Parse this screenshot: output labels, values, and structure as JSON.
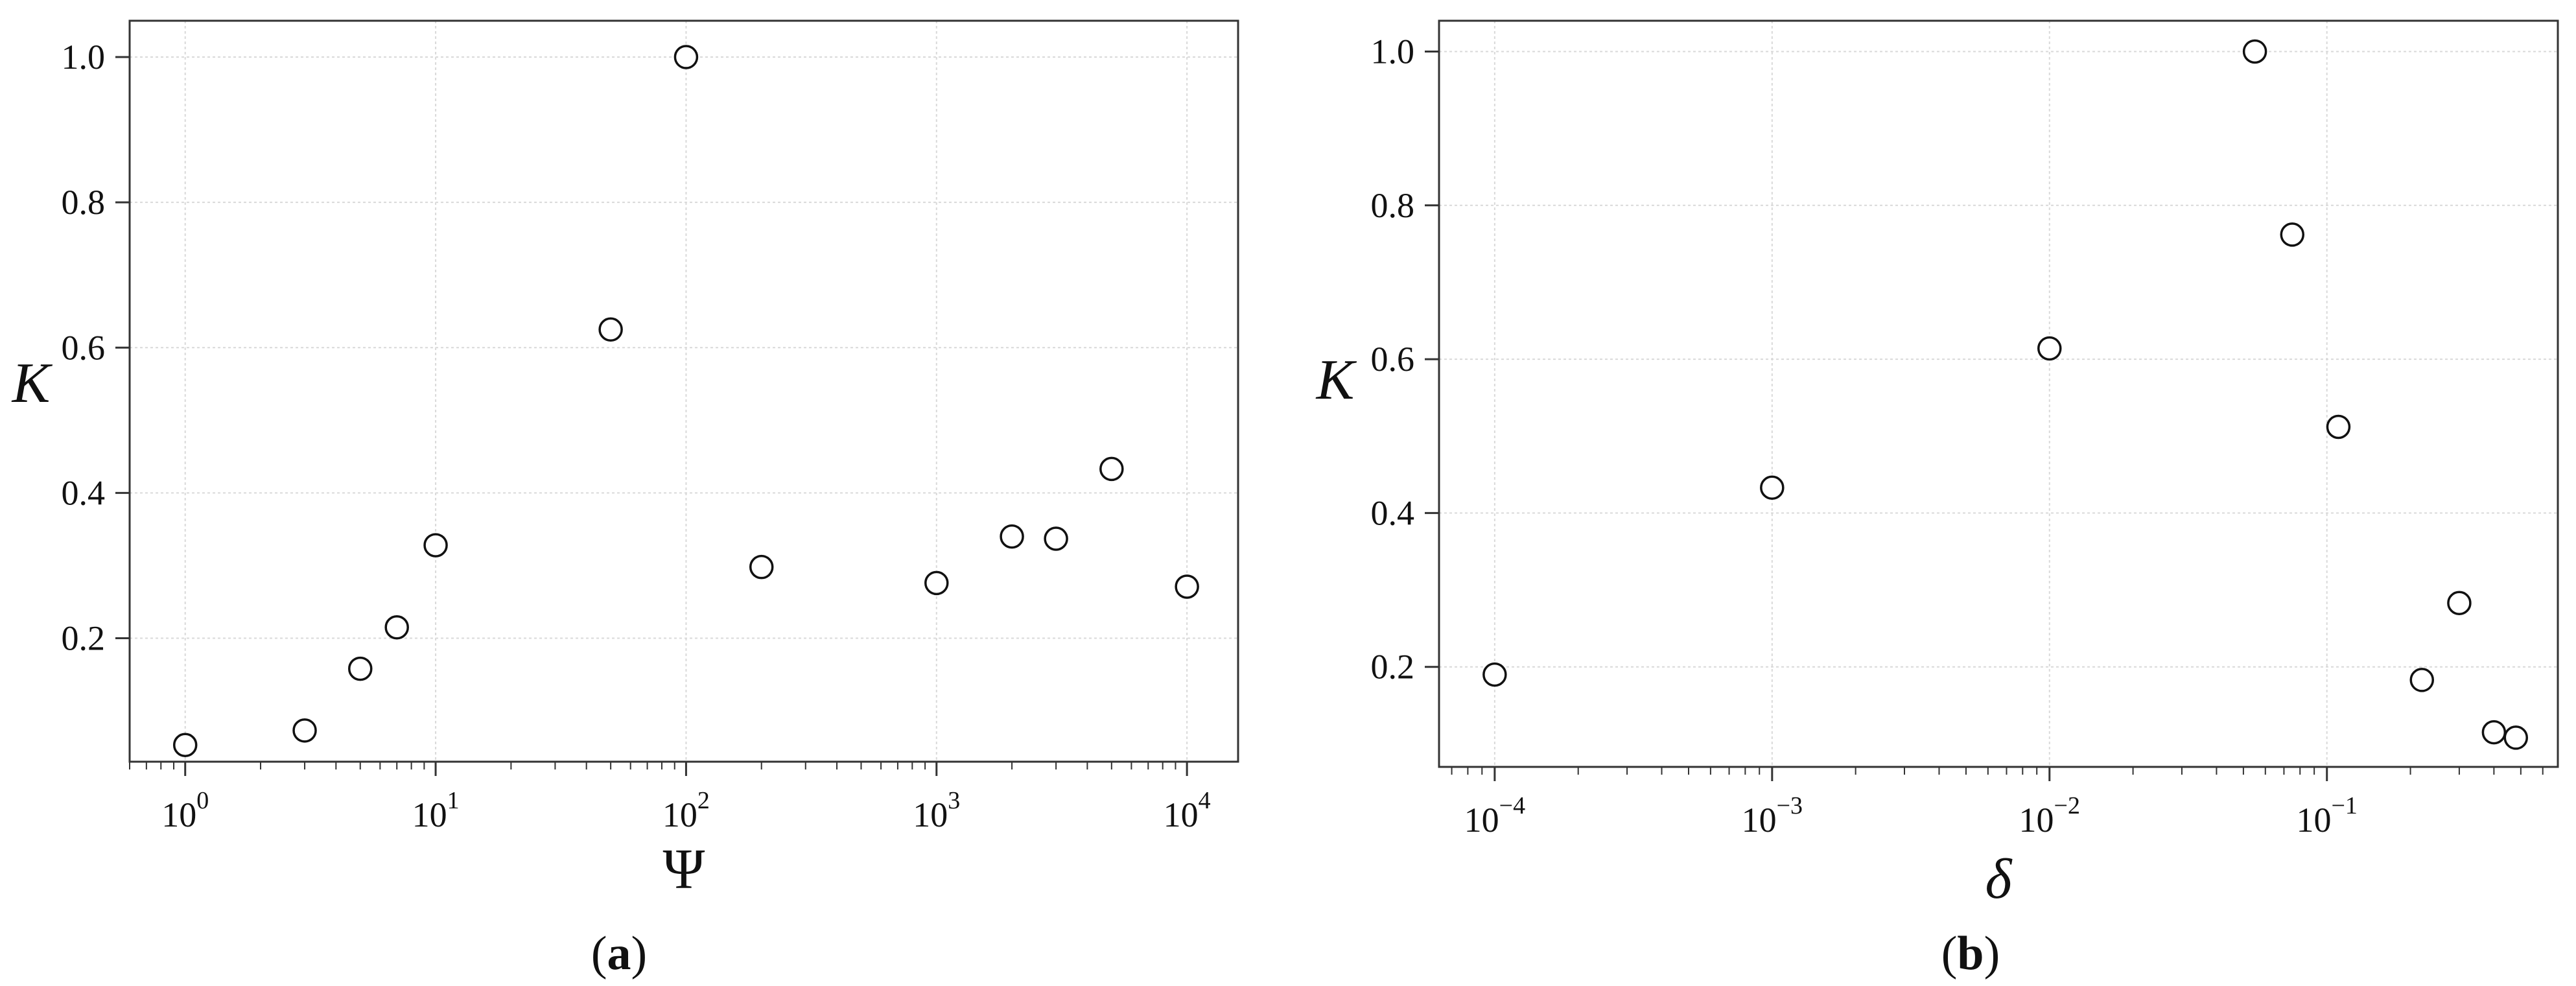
{
  "chart_data": [
    {
      "type": "scatter",
      "panel": "(a)",
      "caption_letter": "a",
      "xlabel": "Ψ",
      "ylabel": "K",
      "xscale": "log",
      "xlim": [
        0.6,
        16000
      ],
      "ylim": [
        0.03,
        1.05
      ],
      "grid": true,
      "xticks": [
        {
          "v": 1,
          "base": "10",
          "exp": "0"
        },
        {
          "v": 10,
          "base": "10",
          "exp": "1"
        },
        {
          "v": 100,
          "base": "10",
          "exp": "2"
        },
        {
          "v": 1000,
          "base": "10",
          "exp": "3"
        },
        {
          "v": 10000,
          "base": "10",
          "exp": "4"
        }
      ],
      "yticks": [
        {
          "v": 0.2,
          "label": "0.2"
        },
        {
          "v": 0.4,
          "label": "0.4"
        },
        {
          "v": 0.6,
          "label": "0.6"
        },
        {
          "v": 0.8,
          "label": "0.8"
        },
        {
          "v": 1.0,
          "label": "1.0"
        }
      ],
      "points": [
        {
          "x": 1,
          "y": 0.053
        },
        {
          "x": 3,
          "y": 0.073
        },
        {
          "x": 5,
          "y": 0.158
        },
        {
          "x": 7,
          "y": 0.215
        },
        {
          "x": 10,
          "y": 0.328
        },
        {
          "x": 50,
          "y": 0.625
        },
        {
          "x": 100,
          "y": 1.0
        },
        {
          "x": 200,
          "y": 0.298
        },
        {
          "x": 1000,
          "y": 0.276
        },
        {
          "x": 2000,
          "y": 0.34
        },
        {
          "x": 3000,
          "y": 0.337
        },
        {
          "x": 5000,
          "y": 0.433
        },
        {
          "x": 10000,
          "y": 0.271
        }
      ]
    },
    {
      "type": "scatter",
      "panel": "(b)",
      "caption_letter": "b",
      "xlabel": "δ",
      "ylabel": "K",
      "xscale": "log",
      "xlim": [
        6.3e-05,
        0.68
      ],
      "ylim": [
        0.07,
        1.04
      ],
      "grid": true,
      "xticks": [
        {
          "v": 0.0001,
          "base": "10",
          "exp": "−4"
        },
        {
          "v": 0.001,
          "base": "10",
          "exp": "−3"
        },
        {
          "v": 0.01,
          "base": "10",
          "exp": "−2"
        },
        {
          "v": 0.1,
          "base": "10",
          "exp": "−1"
        }
      ],
      "yticks": [
        {
          "v": 0.2,
          "label": "0.2"
        },
        {
          "v": 0.4,
          "label": "0.4"
        },
        {
          "v": 0.6,
          "label": "0.6"
        },
        {
          "v": 0.8,
          "label": "0.8"
        },
        {
          "v": 1.0,
          "label": "1.0"
        }
      ],
      "points": [
        {
          "x": 0.0001,
          "y": 0.19
        },
        {
          "x": 0.001,
          "y": 0.433
        },
        {
          "x": 0.01,
          "y": 0.614
        },
        {
          "x": 0.055,
          "y": 1.0
        },
        {
          "x": 0.075,
          "y": 0.762
        },
        {
          "x": 0.11,
          "y": 0.512
        },
        {
          "x": 0.22,
          "y": 0.183
        },
        {
          "x": 0.3,
          "y": 0.283
        },
        {
          "x": 0.4,
          "y": 0.115
        },
        {
          "x": 0.48,
          "y": 0.108
        }
      ]
    }
  ]
}
